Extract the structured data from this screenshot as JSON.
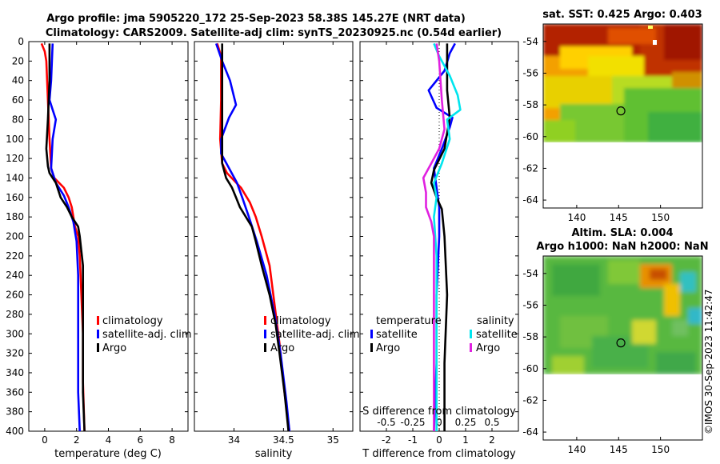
{
  "title": {
    "line1": "Argo profile: jma 5905220_172 25-Sep-2023 58.38S 145.27E (NRT data)",
    "line2": "Climatology: CARS2009. Satellite-adj clim: synTS_20230925.nc (0.54d earlier)"
  },
  "colors": {
    "red": "#ff0000",
    "blue": "#0000ff",
    "black": "#000000",
    "cyan": "#00e5ee",
    "magenta": "#e020e0"
  },
  "legend": {
    "climatology": "climatology",
    "satellite_adj": "satellite-adj. clim",
    "argo": "Argo",
    "temperature": "temperature",
    "salinity": "salinity",
    "satellite": "satellite"
  },
  "map_sst": {
    "title": "sat. SST: 0.425 Argo: 0.403",
    "lon_ticks": [
      "140",
      "145",
      "150"
    ],
    "lat_ticks": [
      "-54",
      "-56",
      "-58",
      "-60",
      "-62",
      "-64"
    ]
  },
  "map_sla": {
    "title1": "Altim. SLA: 0.004",
    "title2": "Argo h1000: NaN h2000: NaN",
    "lon_ticks": [
      "140",
      "145",
      "150"
    ],
    "lat_ticks": [
      "-54",
      "-56",
      "-58",
      "-60",
      "-62",
      "-64"
    ]
  },
  "watermark": "©IMOS 30-Sep-2023 11:42:47",
  "chart_data": [
    {
      "type": "line",
      "name": "temperature",
      "xlabel": "temperature (deg C)",
      "ylabel": "depth",
      "xlim": [
        -1,
        9
      ],
      "ylim": [
        0,
        400
      ],
      "x_ticks": [
        0,
        2,
        4,
        6,
        8
      ],
      "y_ticks": [
        0,
        20,
        40,
        60,
        80,
        100,
        120,
        140,
        160,
        180,
        200,
        220,
        240,
        260,
        280,
        300,
        320,
        340,
        360,
        380,
        400
      ],
      "series": [
        {
          "name": "climatology",
          "color": "red",
          "points": [
            [
              -0.2,
              2
            ],
            [
              0,
              10
            ],
            [
              0.1,
              20
            ],
            [
              0.2,
              60
            ],
            [
              0.3,
              100
            ],
            [
              0.4,
              130
            ],
            [
              0.6,
              140
            ],
            [
              1.2,
              150
            ],
            [
              1.5,
              160
            ],
            [
              1.7,
              170
            ],
            [
              1.8,
              180
            ],
            [
              1.9,
              190
            ],
            [
              2.1,
              200
            ],
            [
              2.2,
              220
            ],
            [
              2.3,
              260
            ],
            [
              2.4,
              300
            ],
            [
              2.4,
              350
            ],
            [
              2.5,
              400
            ]
          ]
        },
        {
          "name": "satellite-adj. clim",
          "color": "blue",
          "points": [
            [
              0.5,
              2
            ],
            [
              0.4,
              40
            ],
            [
              0.3,
              60
            ],
            [
              0.5,
              70
            ],
            [
              0.7,
              80
            ],
            [
              0.5,
              100
            ],
            [
              0.4,
              130
            ],
            [
              0.7,
              145
            ],
            [
              1.2,
              158
            ],
            [
              1.5,
              170
            ],
            [
              1.8,
              185
            ],
            [
              2.0,
              205
            ],
            [
              2.1,
              240
            ],
            [
              2.1,
              300
            ],
            [
              2.1,
              360
            ],
            [
              2.2,
              400
            ]
          ]
        },
        {
          "name": "Argo",
          "color": "black",
          "points": [
            [
              0.3,
              2
            ],
            [
              0.3,
              40
            ],
            [
              0.2,
              80
            ],
            [
              0.1,
              110
            ],
            [
              0.2,
              128
            ],
            [
              0.3,
              135
            ],
            [
              0.7,
              145
            ],
            [
              1.0,
              160
            ],
            [
              1.4,
              170
            ],
            [
              1.7,
              180
            ],
            [
              2.1,
              190
            ],
            [
              2.2,
              200
            ],
            [
              2.4,
              230
            ],
            [
              2.4,
              300
            ],
            [
              2.4,
              360
            ],
            [
              2.5,
              400
            ]
          ]
        }
      ]
    },
    {
      "type": "line",
      "name": "salinity",
      "xlabel": "salinity",
      "xlim": [
        33.6,
        35.2
      ],
      "ylim": [
        0,
        400
      ],
      "x_ticks": [
        34,
        34.5,
        35
      ],
      "series": [
        {
          "name": "climatology",
          "color": "red",
          "points": [
            [
              33.83,
              2
            ],
            [
              33.87,
              15
            ],
            [
              33.87,
              60
            ],
            [
              33.86,
              100
            ],
            [
              33.88,
              125
            ],
            [
              33.93,
              135
            ],
            [
              34.07,
              150
            ],
            [
              34.16,
              165
            ],
            [
              34.22,
              180
            ],
            [
              34.28,
              200
            ],
            [
              34.36,
              230
            ],
            [
              34.41,
              270
            ],
            [
              34.46,
              310
            ],
            [
              34.51,
              360
            ],
            [
              34.56,
              400
            ]
          ]
        },
        {
          "name": "satellite-adj. clim",
          "color": "blue",
          "points": [
            [
              33.82,
              2
            ],
            [
              33.88,
              20
            ],
            [
              33.96,
              40
            ],
            [
              34.02,
              65
            ],
            [
              33.95,
              78
            ],
            [
              33.87,
              100
            ],
            [
              33.87,
              115
            ],
            [
              33.95,
              130
            ],
            [
              34.03,
              145
            ],
            [
              34.09,
              162
            ],
            [
              34.15,
              180
            ],
            [
              34.23,
              205
            ],
            [
              34.33,
              240
            ],
            [
              34.41,
              280
            ],
            [
              34.47,
              320
            ],
            [
              34.53,
              370
            ],
            [
              34.56,
              400
            ]
          ]
        },
        {
          "name": "Argo",
          "color": "black",
          "points": [
            [
              33.88,
              2
            ],
            [
              33.88,
              60
            ],
            [
              33.88,
              100
            ],
            [
              33.88,
              125
            ],
            [
              33.92,
              140
            ],
            [
              33.98,
              150
            ],
            [
              34.02,
              160
            ],
            [
              34.06,
              170
            ],
            [
              34.12,
              180
            ],
            [
              34.18,
              190
            ],
            [
              34.22,
              205
            ],
            [
              34.28,
              230
            ],
            [
              34.36,
              260
            ],
            [
              34.42,
              290
            ],
            [
              34.46,
              320
            ],
            [
              34.51,
              360
            ],
            [
              34.55,
              400
            ]
          ]
        }
      ]
    },
    {
      "type": "line",
      "name": "difference",
      "xlabel": "T difference from climatology",
      "xlabel_top": "S difference from climatology",
      "xlim": [
        -3,
        3
      ],
      "ylim": [
        0,
        400
      ],
      "x_ticks": [
        "-2",
        "-1",
        "0",
        "1",
        "2"
      ],
      "top_ticks": [
        "-0.5",
        "-0.25",
        "0",
        "0.25",
        "0.5"
      ],
      "series": [
        {
          "name": "temperature satellite",
          "color": "blue",
          "points": [
            [
              0.6,
              2
            ],
            [
              0.4,
              12
            ],
            [
              0.2,
              30
            ],
            [
              -0.4,
              50
            ],
            [
              -0.1,
              68
            ],
            [
              0.5,
              78
            ],
            [
              0.4,
              88
            ],
            [
              0.1,
              110
            ],
            [
              -0.2,
              130
            ],
            [
              -0.1,
              150
            ],
            [
              0.0,
              170
            ],
            [
              0.0,
              200
            ],
            [
              -0.1,
              260
            ],
            [
              -0.1,
              330
            ],
            [
              -0.2,
              400
            ]
          ]
        },
        {
          "name": "temperature Argo",
          "color": "black",
          "points": [
            [
              0.3,
              2
            ],
            [
              0.3,
              50
            ],
            [
              0.4,
              78
            ],
            [
              0.2,
              110
            ],
            [
              -0.2,
              132
            ],
            [
              -0.3,
              145
            ],
            [
              -0.1,
              160
            ],
            [
              0.1,
              172
            ],
            [
              0.2,
              200
            ],
            [
              0.3,
              260
            ],
            [
              0.2,
              330
            ],
            [
              0.2,
              400
            ]
          ]
        },
        {
          "name": "salinity satellite",
          "color": "cyan",
          "points": [
            [
              -0.2,
              2
            ],
            [
              0.0,
              15
            ],
            [
              0.4,
              35
            ],
            [
              0.7,
              55
            ],
            [
              0.8,
              70
            ],
            [
              0.3,
              80
            ],
            [
              0.4,
              100
            ],
            [
              0.1,
              125
            ],
            [
              -0.2,
              145
            ],
            [
              -0.1,
              160
            ],
            [
              -0.2,
              180
            ],
            [
              -0.1,
              220
            ],
            [
              -0.1,
              330
            ],
            [
              -0.1,
              400
            ]
          ]
        },
        {
          "name": "salinity Argo",
          "color": "magenta",
          "points": [
            [
              -0.1,
              2
            ],
            [
              0.0,
              20
            ],
            [
              0.1,
              60
            ],
            [
              0.2,
              90
            ],
            [
              0.0,
              110
            ],
            [
              -0.3,
              125
            ],
            [
              -0.6,
              140
            ],
            [
              -0.5,
              155
            ],
            [
              -0.5,
              170
            ],
            [
              -0.3,
              185
            ],
            [
              -0.2,
              200
            ],
            [
              -0.2,
              260
            ],
            [
              -0.2,
              330
            ],
            [
              -0.2,
              400
            ]
          ]
        }
      ]
    },
    {
      "type": "heatmap",
      "name": "sat-sst-map",
      "title": "sat. SST: 0.425 Argo: 0.403",
      "xlim": [
        136,
        155
      ],
      "ylim": [
        -64.5,
        -52.9
      ],
      "x_ticks": [
        140,
        145,
        150
      ],
      "y_ticks": [
        -54,
        -56,
        -58,
        -60,
        -62,
        -64
      ],
      "marker": {
        "lon": 145.27,
        "lat": -58.38
      }
    },
    {
      "type": "heatmap",
      "name": "altim-sla-map",
      "title": "Altim. SLA: 0.004",
      "xlim": [
        136,
        155
      ],
      "ylim": [
        -64.5,
        -52.9
      ],
      "x_ticks": [
        140,
        145,
        150
      ],
      "y_ticks": [
        -54,
        -56,
        -58,
        -60,
        -62,
        -64
      ],
      "marker": {
        "lon": 145.27,
        "lat": -58.38
      }
    }
  ]
}
